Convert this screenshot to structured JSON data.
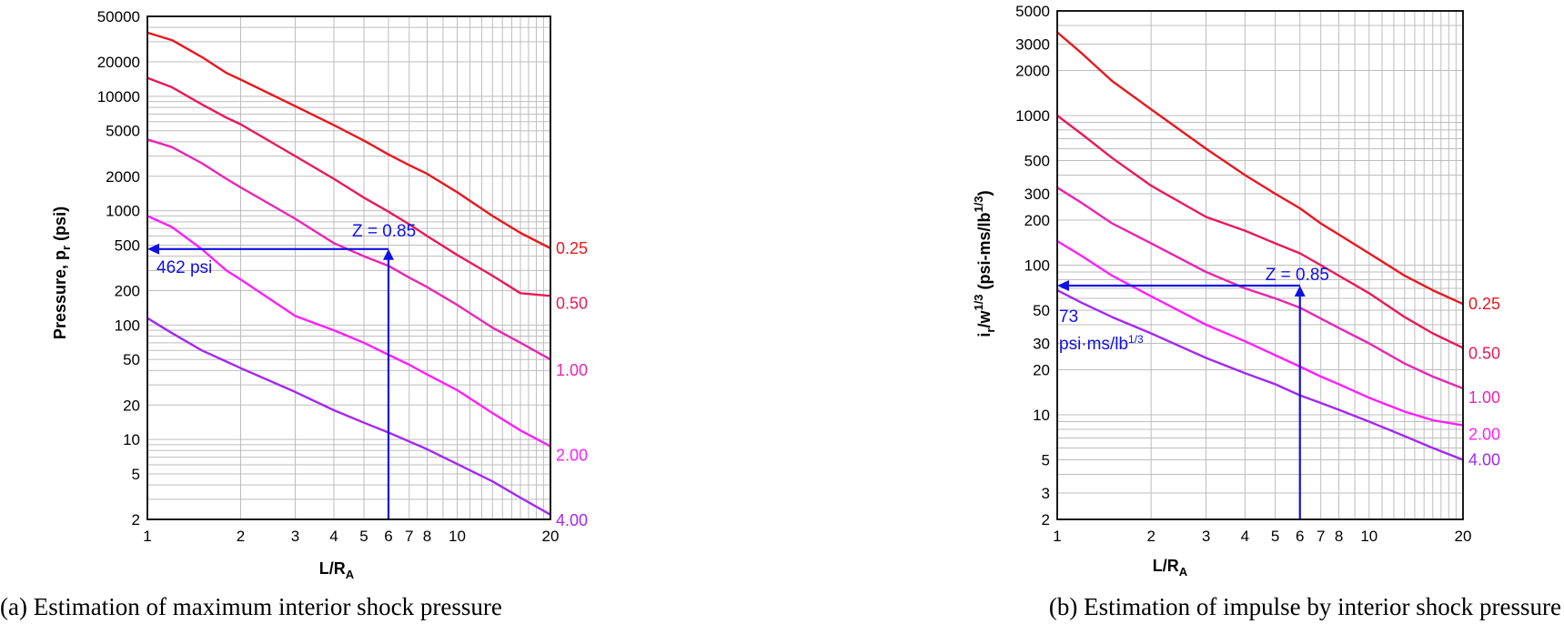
{
  "chart_data": [
    {
      "type": "line",
      "caption": "(a) Estimation of maximum interior shock pressure",
      "xlabel": "L/R",
      "xlabel_sub": "A",
      "ylabel": "Pressure, p",
      "ylabel_sub": "r",
      "ylabel_tail": " (psi)",
      "x_scale": "log",
      "y_scale": "log",
      "xlim": [
        1,
        20
      ],
      "ylim": [
        2,
        50000
      ],
      "x_ticks": [
        1,
        2,
        3,
        4,
        5,
        6,
        7,
        8,
        10,
        20
      ],
      "y_ticks": [
        2,
        5,
        10,
        20,
        50,
        100,
        200,
        500,
        1000,
        2000,
        5000,
        10000,
        20000,
        50000
      ],
      "grid": true,
      "series": [
        {
          "name": "0.25",
          "color": "#e8171e",
          "x": [
            1,
            1.2,
            1.5,
            1.8,
            2,
            3,
            4,
            5,
            6,
            7,
            8,
            10,
            13,
            16,
            20
          ],
          "y": [
            36000,
            31000,
            22000,
            16000,
            14000,
            8200,
            5600,
            4100,
            3100,
            2500,
            2100,
            1450,
            900,
            640,
            470
          ]
        },
        {
          "name": "0.50",
          "color": "#e8195a",
          "x": [
            1,
            1.2,
            1.5,
            1.8,
            2,
            3,
            4,
            5,
            6,
            7,
            8,
            10,
            13,
            16,
            20
          ],
          "y": [
            14500,
            12000,
            8500,
            6500,
            5700,
            3000,
            1900,
            1300,
            980,
            760,
            600,
            410,
            270,
            190,
            180
          ]
        },
        {
          "name": "1.00",
          "color": "#e826b4",
          "x": [
            1,
            1.2,
            1.5,
            1.8,
            2,
            3,
            4,
            5,
            6,
            7,
            8,
            10,
            13,
            16,
            20
          ],
          "y": [
            4200,
            3600,
            2600,
            1900,
            1600,
            850,
            520,
            400,
            330,
            260,
            215,
            150,
            95,
            70,
            50
          ]
        },
        {
          "name": "2.00",
          "color": "#ff1eff",
          "x": [
            1,
            1.2,
            1.5,
            1.8,
            2,
            3,
            4,
            5,
            6,
            7,
            8,
            10,
            13,
            16,
            20
          ],
          "y": [
            900,
            720,
            460,
            300,
            250,
            120,
            90,
            70,
            55,
            45,
            37,
            27,
            17,
            12,
            8.7
          ]
        },
        {
          "name": "4.00",
          "color": "#a328f0",
          "x": [
            1,
            1.2,
            1.5,
            1.8,
            2,
            3,
            4,
            5,
            6,
            7,
            8,
            10,
            13,
            16,
            20
          ],
          "y": [
            115,
            85,
            60,
            48,
            42,
            26,
            18,
            14,
            11.5,
            9.6,
            8.2,
            6.1,
            4.3,
            3.1,
            2.2
          ]
        }
      ],
      "annotation": {
        "z_label": "Z = 0.85",
        "value_label": "462 psi",
        "value_label_2": "",
        "x": 6,
        "y": 462
      }
    },
    {
      "type": "line",
      "caption": "(b) Estimation of impulse by interior shock pressure",
      "xlabel": "L/R",
      "xlabel_sub": "A",
      "ylabel": "i",
      "ylabel_sub": "r",
      "ylabel_mid": "/w",
      "ylabel_sup": "1/3",
      "ylabel_tail": " (psi-ms/lb",
      "ylabel_sup2": "1/3",
      "ylabel_end": ")",
      "x_scale": "log",
      "y_scale": "log",
      "xlim": [
        1,
        20
      ],
      "ylim": [
        2,
        5000
      ],
      "x_ticks": [
        1,
        2,
        3,
        4,
        5,
        6,
        7,
        8,
        10,
        20
      ],
      "y_ticks": [
        2,
        3,
        5,
        10,
        20,
        30,
        50,
        100,
        200,
        300,
        500,
        1000,
        2000,
        3000,
        5000
      ],
      "grid": true,
      "series": [
        {
          "name": "0.25",
          "color": "#e8171e",
          "x": [
            1,
            1.2,
            1.5,
            2,
            3,
            4,
            5,
            6,
            7,
            8,
            10,
            13,
            16,
            20
          ],
          "y": [
            3600,
            2600,
            1700,
            1100,
            600,
            400,
            300,
            240,
            190,
            160,
            120,
            85,
            68,
            55
          ]
        },
        {
          "name": "0.50",
          "color": "#e8195a",
          "x": [
            1,
            1.2,
            1.5,
            2,
            3,
            4,
            5,
            6,
            7,
            8,
            10,
            13,
            16,
            20
          ],
          "y": [
            1000,
            750,
            520,
            340,
            210,
            170,
            140,
            120,
            100,
            85,
            65,
            45,
            35,
            28
          ]
        },
        {
          "name": "1.00",
          "color": "#e826b4",
          "x": [
            1,
            1.2,
            1.5,
            2,
            3,
            4,
            5,
            6,
            7,
            8,
            10,
            13,
            16,
            20
          ],
          "y": [
            330,
            260,
            190,
            140,
            90,
            70,
            60,
            52,
            44,
            38,
            30,
            22,
            18,
            15
          ]
        },
        {
          "name": "2.00",
          "color": "#ff1eff",
          "x": [
            1,
            1.2,
            1.5,
            2,
            3,
            4,
            5,
            6,
            7,
            8,
            10,
            13,
            16,
            20
          ],
          "y": [
            145,
            115,
            85,
            62,
            40,
            31,
            25,
            21,
            18,
            16,
            13,
            10.5,
            9.2,
            8.5
          ]
        },
        {
          "name": "4.00",
          "color": "#a328f0",
          "x": [
            1,
            1.2,
            1.5,
            2,
            3,
            4,
            5,
            6,
            7,
            8,
            10,
            13,
            16,
            20
          ],
          "y": [
            68,
            56,
            45,
            35,
            24,
            19,
            16,
            13.5,
            12,
            10.8,
            9,
            7.2,
            6,
            5
          ]
        }
      ],
      "annotation": {
        "z_label": "Z = 0.85",
        "value_label": "73",
        "value_label_2": "psi·ms/lb",
        "value_label_sup": "1/3",
        "x": 6,
        "y": 73
      }
    }
  ]
}
